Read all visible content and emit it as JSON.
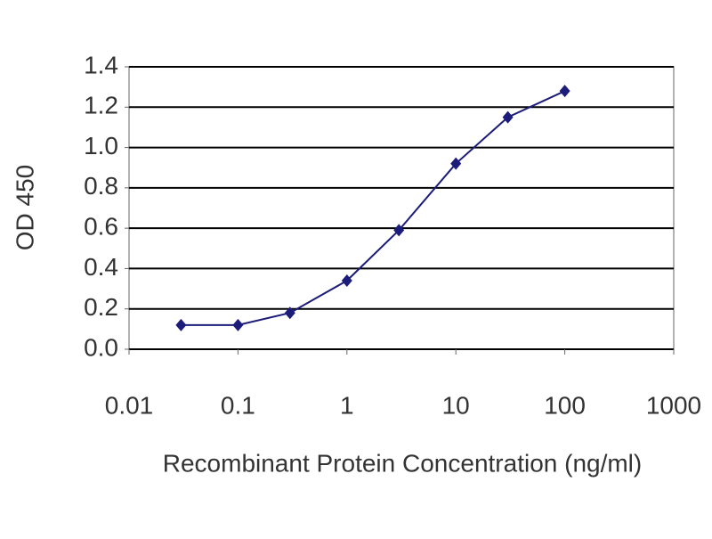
{
  "chart_data": {
    "type": "line",
    "x_label": "Recombinant Protein Concentration (ng/ml)",
    "y_label": "OD 450",
    "x": [
      0.03,
      0.1,
      0.3,
      1,
      3,
      10,
      30,
      100
    ],
    "series": [
      {
        "color": "#1c1c7a",
        "values": [
          0.12,
          0.12,
          0.18,
          0.34,
          0.59,
          0.92,
          1.15,
          1.28
        ]
      }
    ],
    "x_scale": "log",
    "xlim": [
      0.01,
      1000
    ],
    "xticks": [
      0.01,
      0.1,
      1,
      10,
      100,
      1000
    ],
    "ylim": [
      0,
      1.4
    ],
    "yticks": [
      {
        "value": 0,
        "label": "0.0"
      },
      {
        "value": 0.2,
        "label": "0.2"
      },
      {
        "value": 0.4,
        "label": "0.4"
      },
      {
        "value": 0.6,
        "label": "0.6"
      },
      {
        "value": 0.8,
        "label": "0.8"
      },
      {
        "value": 1.0,
        "label": "1.0"
      },
      {
        "value": 1.2,
        "label": "1.2"
      },
      {
        "value": 1.4,
        "label": "1.4"
      }
    ],
    "grid": true
  }
}
